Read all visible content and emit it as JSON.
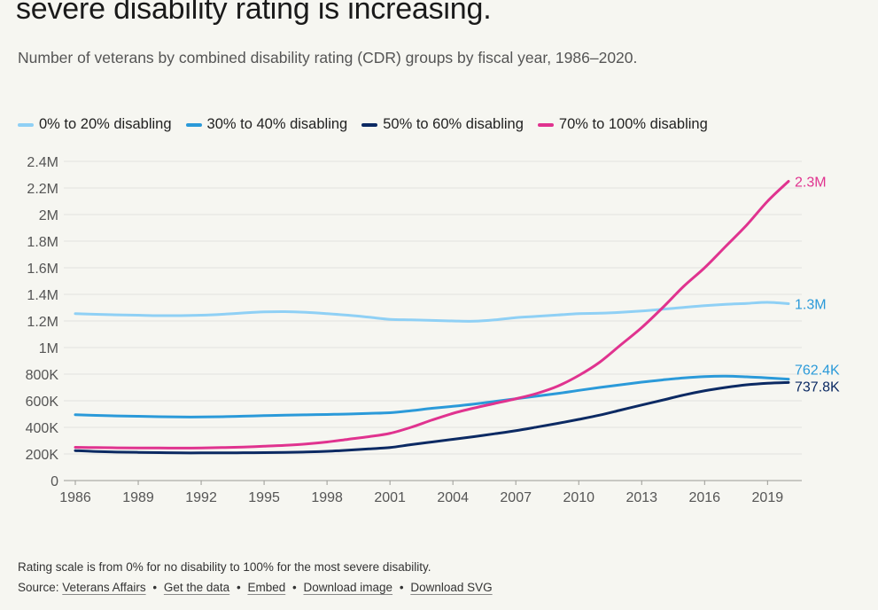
{
  "header": {
    "title": "severe disability rating is increasing.",
    "subtitle": "Number of veterans by combined disability rating (CDR) groups by fiscal year, 1986–2020."
  },
  "colors": {
    "series_0_20": "#8fd0f5",
    "series_30_40": "#2b9ad9",
    "series_50_60": "#0c2a63",
    "series_70_100": "#e0338f",
    "grid": "#e3e3de",
    "axis_text": "#555555"
  },
  "legend": [
    {
      "label": "0% to 20% disabling",
      "color": "#8fd0f5"
    },
    {
      "label": "30% to 40% disabling",
      "color": "#2b9ad9"
    },
    {
      "label": "50% to 60% disabling",
      "color": "#0c2a63"
    },
    {
      "label": "70% to 100% disabling",
      "color": "#e0338f"
    }
  ],
  "chart_data": {
    "type": "line",
    "title": "severe disability rating is increasing.",
    "subtitle": "Number of veterans by combined disability rating (CDR) groups by fiscal year, 1986–2020.",
    "xlabel": "",
    "ylabel": "",
    "xlim": [
      1986,
      2020
    ],
    "ylim": [
      0,
      2400000
    ],
    "grid": true,
    "legend_position": "top-left",
    "x_ticks": [
      1986,
      1989,
      1992,
      1995,
      1998,
      2001,
      2004,
      2007,
      2010,
      2013,
      2016,
      2019
    ],
    "y_ticks": [
      0,
      200000,
      400000,
      600000,
      800000,
      1000000,
      1200000,
      1400000,
      1600000,
      1800000,
      2000000,
      2200000,
      2400000
    ],
    "y_tick_labels": [
      "0",
      "200K",
      "400K",
      "600K",
      "800K",
      "1M",
      "1.2M",
      "1.4M",
      "1.6M",
      "1.8M",
      "2M",
      "2.2M",
      "2.4M"
    ],
    "x": [
      1986,
      1987,
      1988,
      1989,
      1990,
      1991,
      1992,
      1993,
      1994,
      1995,
      1996,
      1997,
      1998,
      1999,
      2000,
      2001,
      2002,
      2003,
      2004,
      2005,
      2006,
      2007,
      2008,
      2009,
      2010,
      2011,
      2012,
      2013,
      2014,
      2015,
      2016,
      2017,
      2018,
      2019,
      2020
    ],
    "series": [
      {
        "name": "0% to 20% disabling",
        "end_label": "1.3M",
        "values": [
          1255000,
          1250000,
          1246000,
          1243000,
          1240000,
          1240000,
          1243000,
          1250000,
          1260000,
          1268000,
          1270000,
          1265000,
          1255000,
          1243000,
          1228000,
          1212000,
          1208000,
          1204000,
          1200000,
          1198000,
          1208000,
          1225000,
          1235000,
          1245000,
          1255000,
          1258000,
          1265000,
          1275000,
          1288000,
          1302000,
          1315000,
          1325000,
          1332000,
          1340000,
          1330000
        ]
      },
      {
        "name": "30% to 40% disabling",
        "end_label": "762.4K",
        "values": [
          495000,
          490000,
          486000,
          483000,
          480000,
          478000,
          478000,
          480000,
          484000,
          488000,
          492000,
          494000,
          497000,
          500000,
          505000,
          510000,
          525000,
          543000,
          558000,
          575000,
          595000,
          615000,
          635000,
          655000,
          678000,
          700000,
          720000,
          740000,
          757000,
          772000,
          782000,
          785000,
          780000,
          772000,
          762400
        ]
      },
      {
        "name": "50% to 60% disabling",
        "end_label": "737.8K",
        "values": [
          225000,
          218000,
          214000,
          212000,
          210000,
          208000,
          208000,
          208000,
          209000,
          210000,
          212000,
          215000,
          220000,
          228000,
          238000,
          248000,
          270000,
          290000,
          310000,
          330000,
          352000,
          375000,
          402000,
          430000,
          460000,
          492000,
          530000,
          568000,
          605000,
          643000,
          675000,
          700000,
          720000,
          732000,
          737800
        ]
      },
      {
        "name": "70% to 100% disabling",
        "end_label": "2.3M",
        "values": [
          250000,
          248000,
          246000,
          245000,
          245000,
          244000,
          245000,
          248000,
          252000,
          258000,
          265000,
          275000,
          290000,
          310000,
          330000,
          355000,
          400000,
          455000,
          505000,
          545000,
          580000,
          615000,
          655000,
          710000,
          790000,
          890000,
          1020000,
          1150000,
          1300000,
          1460000,
          1600000,
          1760000,
          1920000,
          2100000,
          2250000
        ]
      }
    ]
  },
  "footer": {
    "note": "Rating scale is from 0% for no disability to 100% for the most severe disability.",
    "source_prefix": "Source:",
    "links": [
      "Veterans Affairs",
      "Get the data",
      "Embed",
      "Download image",
      "Download SVG"
    ],
    "separator": "•"
  }
}
